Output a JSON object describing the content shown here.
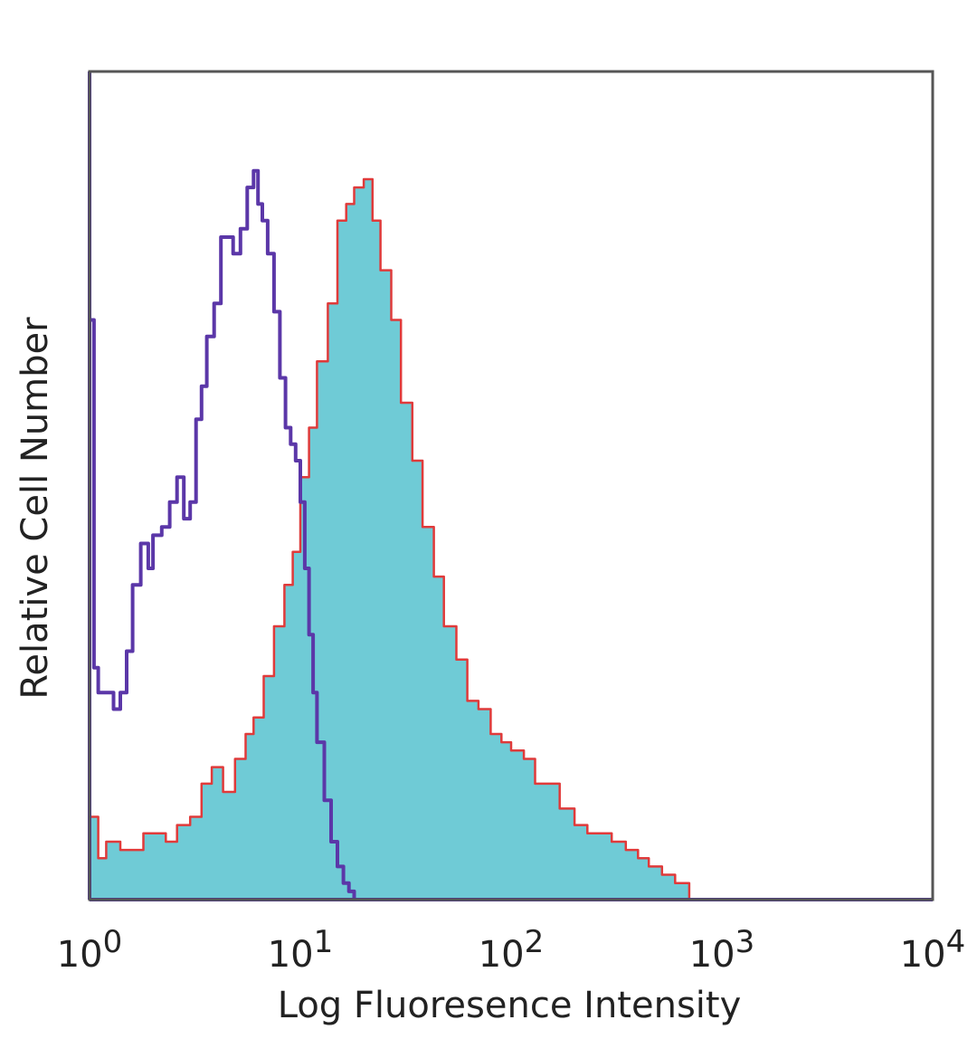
{
  "chart_data": {
    "type": "area",
    "x_scale": "log",
    "xlim": [
      1,
      10000
    ],
    "xlabel": "Log Fluoresence Intensity",
    "ylabel": "Relative Cell Number",
    "y_ticks_shown": false,
    "grid": false,
    "x_ticks": [
      {
        "value": 1,
        "base": "10",
        "exp": "0"
      },
      {
        "value": 10,
        "base": "10",
        "exp": "1"
      },
      {
        "value": 100,
        "base": "10",
        "exp": "2"
      },
      {
        "value": 1000,
        "base": "10",
        "exp": "3"
      },
      {
        "value": 10000,
        "base": "10",
        "exp": "4"
      }
    ],
    "ylim": [
      0,
      100
    ],
    "series": [
      {
        "style": "filled-histogram",
        "fill": "#6fcbd6",
        "stroke": "#e03a3a",
        "x": [
          1,
          1.1,
          1.2,
          1.4,
          1.6,
          1.8,
          2.0,
          2.3,
          2.6,
          3.0,
          3.4,
          3.8,
          4.3,
          4.9,
          5.5,
          6.0,
          6.7,
          7.5,
          8.4,
          9.2,
          10.0,
          11.0,
          12.0,
          13.5,
          15.0,
          16.5,
          18.0,
          20.0,
          22.0,
          24.0,
          27.0,
          30.0,
          34.0,
          38.0,
          43.0,
          48.0,
          55.0,
          62.0,
          70.0,
          80.0,
          90.0,
          100.0,
          115.0,
          130.0,
          150.0,
          170.0,
          200.0,
          230.0,
          260.0,
          300.0,
          350.0,
          400.0,
          450.0,
          520.0,
          600.0,
          700.0
        ],
        "y": [
          10,
          5,
          7,
          6,
          6,
          8,
          8,
          7,
          9,
          10,
          14,
          16,
          13,
          17,
          20,
          22,
          27,
          33,
          38,
          42,
          51,
          57,
          65,
          72,
          82,
          84,
          86,
          87,
          82,
          76,
          70,
          60,
          53,
          45,
          39,
          33,
          29,
          24,
          23,
          20,
          19,
          18,
          17,
          14,
          14,
          11,
          9,
          8,
          8,
          7,
          6,
          5,
          4,
          3,
          2,
          0
        ]
      },
      {
        "style": "outline-histogram",
        "stroke": "#5b37a8",
        "x": [
          1,
          1.05,
          1.1,
          1.2,
          1.3,
          1.4,
          1.5,
          1.6,
          1.75,
          1.9,
          2.0,
          2.2,
          2.4,
          2.6,
          2.8,
          3.0,
          3.2,
          3.4,
          3.6,
          3.9,
          4.2,
          4.5,
          4.8,
          5.2,
          5.6,
          6.0,
          6.3,
          6.6,
          7.0,
          7.5,
          8.0,
          8.5,
          9.0,
          9.5,
          10.0,
          10.5,
          11.0,
          11.5,
          12.0,
          13.0,
          14.0,
          15.0,
          16.0,
          17.0,
          18.0
        ],
        "y": [
          70,
          28,
          25,
          25,
          23,
          25,
          30,
          38,
          43,
          40,
          44,
          45,
          48,
          51,
          46,
          48,
          58,
          62,
          68,
          72,
          80,
          80,
          78,
          81,
          86,
          88,
          84,
          82,
          78,
          71,
          63,
          57,
          55,
          53,
          48,
          40,
          32,
          25,
          19,
          12,
          7,
          4,
          2,
          1,
          0
        ]
      }
    ]
  }
}
